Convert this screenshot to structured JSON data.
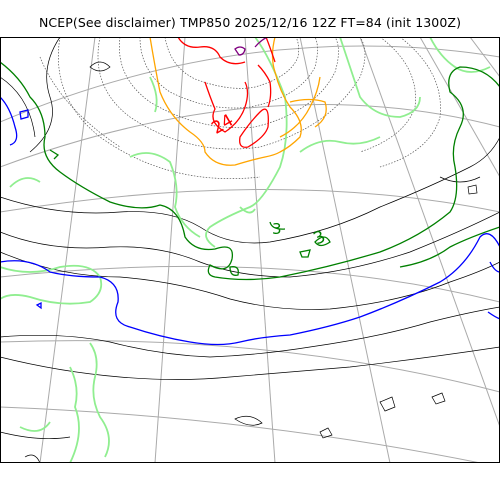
{
  "title": "NCEP(See disclaimer) TMP850 2025/12/16 12Z FT=84 (init 1300Z)",
  "contour_labels": {
    "red": "24",
    "green": "3"
  },
  "colors": {
    "background": "#ffffff",
    "frame": "#000000",
    "graticule": "#aaaaaa",
    "coastline": "#333333",
    "isotherm_black": "#000000",
    "isotherm_dotted": "#555555",
    "isotherm_light_green": "#90ee90",
    "isotherm_green": "#008000",
    "isotherm_blue": "#0000ff",
    "isotherm_orange": "#ffa500",
    "isotherm_red": "#ff0000",
    "isotherm_purple": "#800080"
  }
}
